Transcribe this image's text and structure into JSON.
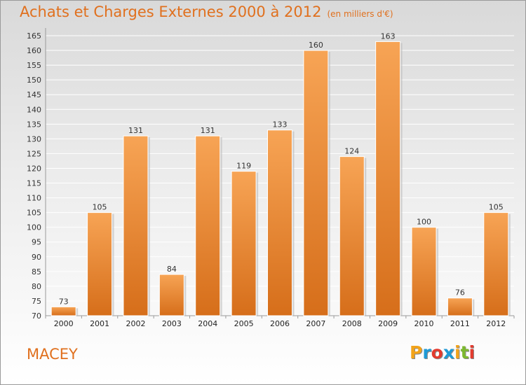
{
  "chart_data": {
    "type": "bar",
    "title": "Achats et Charges Externes 2000 à 2012",
    "subtitle": "(en milliers d'€)",
    "categories": [
      "2000",
      "2001",
      "2002",
      "2003",
      "2004",
      "2005",
      "2006",
      "2007",
      "2008",
      "2009",
      "2010",
      "2011",
      "2012"
    ],
    "values": [
      73,
      105,
      131,
      84,
      131,
      119,
      133,
      160,
      124,
      163,
      100,
      76,
      105
    ],
    "ylim": [
      70,
      165
    ],
    "yticks": [
      70,
      75,
      80,
      85,
      90,
      95,
      100,
      105,
      110,
      115,
      120,
      125,
      130,
      135,
      140,
      145,
      150,
      155,
      160,
      165
    ],
    "grid": true,
    "bar_color": "#f0903a"
  },
  "commune": "MACEY",
  "logo": {
    "letters": [
      "P",
      "r",
      "o",
      "x",
      "i",
      "t",
      "i"
    ],
    "colors": [
      "#f2a31a",
      "#1e9ad6",
      "#e23b2e",
      "#1e9ad6",
      "#f2a31a",
      "#7cb82f",
      "#e23b2e"
    ]
  }
}
